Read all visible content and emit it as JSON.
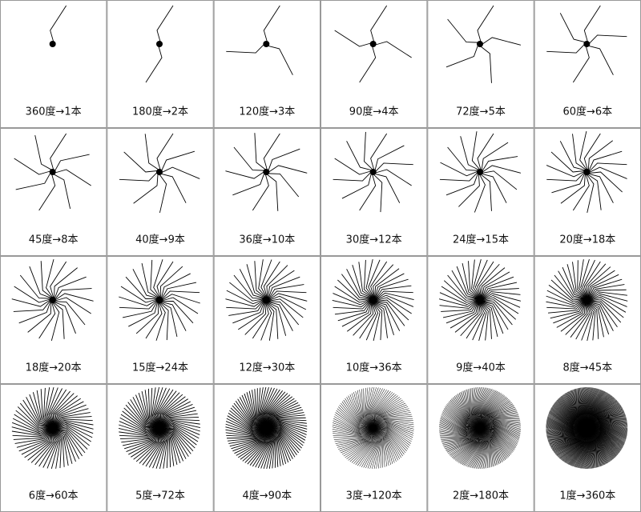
{
  "cells": [
    {
      "label": "360度→1本"
    },
    {
      "label": "180度→2本"
    },
    {
      "label": "120度→3本"
    },
    {
      "label": "90度→4本"
    },
    {
      "label": "72度→5本"
    },
    {
      "label": "60度→6本"
    },
    {
      "label": "45度→8本"
    },
    {
      "label": "40度→9本"
    },
    {
      "label": "36度→10本"
    },
    {
      "label": "30度→12本"
    },
    {
      "label": "24度→15本"
    },
    {
      "label": "20度→18本"
    },
    {
      "label": "18度→20本"
    },
    {
      "label": "15度→24本"
    },
    {
      "label": "12度→30本"
    },
    {
      "label": "10度→36本"
    },
    {
      "label": "9度→40本"
    },
    {
      "label": "8度→45本"
    },
    {
      "label": "6度→60本"
    },
    {
      "label": "5度→72本"
    },
    {
      "label": "4度→90本"
    },
    {
      "label": "3度→120本"
    },
    {
      "label": "2度→180本"
    },
    {
      "label": "1度→360本"
    }
  ]
}
